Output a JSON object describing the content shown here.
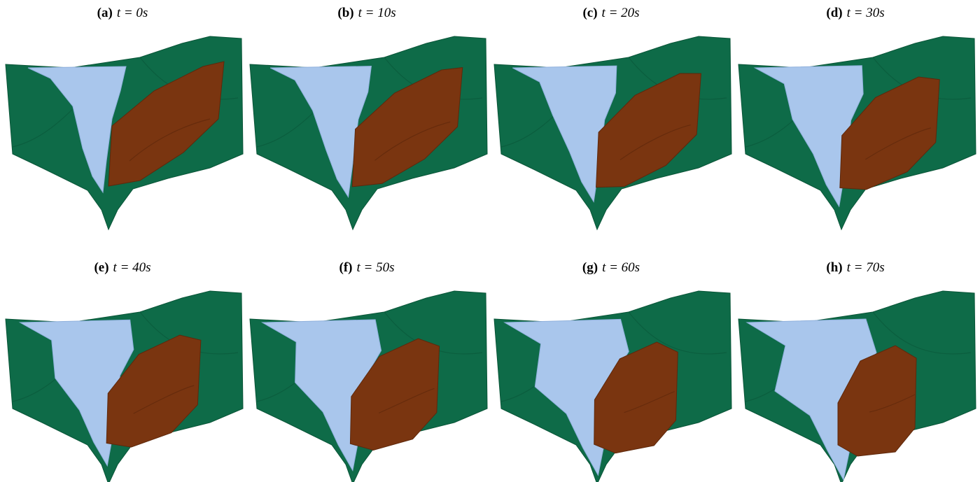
{
  "panels": [
    {
      "label": "(a)",
      "caption": "t = 0s"
    },
    {
      "label": "(b)",
      "caption": "t = 10s"
    },
    {
      "label": "(c)",
      "caption": "t = 20s"
    },
    {
      "label": "(d)",
      "caption": "t = 30s"
    },
    {
      "label": "(e)",
      "caption": "t = 40s"
    },
    {
      "label": "(f)",
      "caption": "t = 50s"
    },
    {
      "label": "(g)",
      "caption": "t = 60s"
    },
    {
      "label": "(h)",
      "caption": "t = 70s"
    }
  ]
}
